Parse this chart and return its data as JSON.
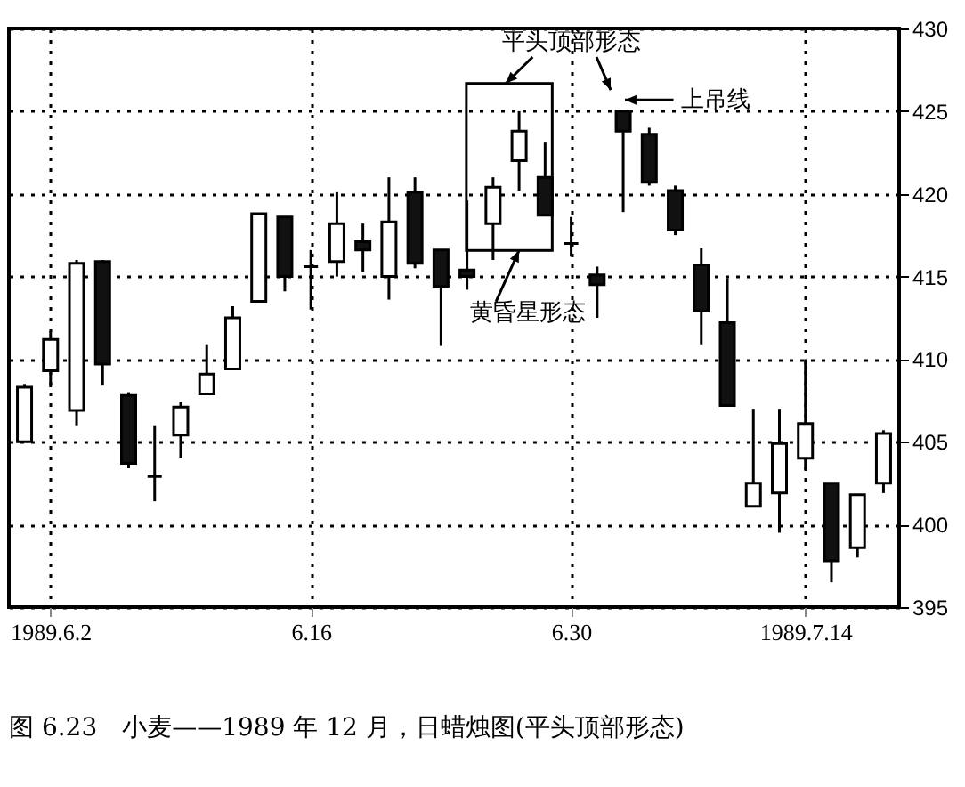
{
  "chart_data": {
    "type": "candlestick",
    "title": "图 6.23　小麦——1989 年 12 月，日蜡烛图(平头顶部形态)",
    "categories": [
      null,
      "1989.6.2",
      null,
      null,
      null,
      null,
      null,
      null,
      null,
      null,
      null,
      "6.16",
      null,
      null,
      null,
      null,
      null,
      null,
      null,
      null,
      null,
      "6.30",
      null,
      null,
      null,
      null,
      null,
      null,
      null,
      null,
      "1989.7.14",
      null,
      null,
      null
    ],
    "ohlc": [
      [
        405,
        408.5,
        405,
        408.3
      ],
      [
        409.3,
        411.7,
        408.3,
        411.2
      ],
      [
        406.9,
        416,
        406,
        415.8
      ],
      [
        415.9,
        416,
        408.4,
        409.7
      ],
      [
        407.8,
        408,
        403.4,
        403.7
      ],
      [
        402.9,
        406,
        401.4,
        402.9
      ],
      [
        405.4,
        407.4,
        404,
        407.1
      ],
      [
        407.9,
        410.9,
        407.9,
        409.1
      ],
      [
        409.4,
        413.2,
        409.4,
        412.5
      ],
      [
        413.5,
        418.8,
        413.5,
        418.8
      ],
      [
        418.6,
        418.6,
        414.1,
        415
      ],
      [
        415.6,
        416.6,
        413,
        415.6
      ],
      [
        415.9,
        420.1,
        415,
        418.2
      ],
      [
        417.1,
        418.2,
        415.3,
        416.6
      ],
      [
        415,
        421,
        413.6,
        418.3
      ],
      [
        420.1,
        421,
        415.5,
        415.8
      ],
      [
        416.6,
        416.6,
        410.8,
        414.4
      ],
      [
        415.4,
        419.6,
        414.2,
        415
      ],
      [
        418.2,
        421,
        416,
        420.4
      ],
      [
        422,
        425,
        420.2,
        423.8
      ],
      [
        421,
        423.1,
        418.7,
        418.7
      ],
      [
        417,
        418.6,
        416.2,
        417
      ],
      [
        415.1,
        415.6,
        412.5,
        414.5
      ],
      [
        425,
        425,
        418.9,
        423.8
      ],
      [
        423.6,
        424,
        420.5,
        420.7
      ],
      [
        420.2,
        420.5,
        417.5,
        417.8
      ],
      [
        415.7,
        416.7,
        410.9,
        412.9
      ],
      [
        412.2,
        414.9,
        407.2,
        407.2
      ],
      [
        401.1,
        407,
        401.1,
        402.5
      ],
      [
        401.9,
        407,
        399.5,
        404.9
      ],
      [
        404,
        410,
        403.3,
        406.1
      ],
      [
        402.5,
        402.5,
        396.5,
        397.8
      ],
      [
        398.6,
        401.8,
        398,
        401.8
      ],
      [
        402.5,
        405.7,
        401.9,
        405.5
      ]
    ],
    "ylim": [
      395,
      430
    ],
    "yticks": [
      395,
      400,
      405,
      410,
      415,
      420,
      425,
      430
    ],
    "grid": true,
    "annotations": [
      "平头顶部形态",
      "黄昏星形态",
      "上吊线"
    ]
  }
}
